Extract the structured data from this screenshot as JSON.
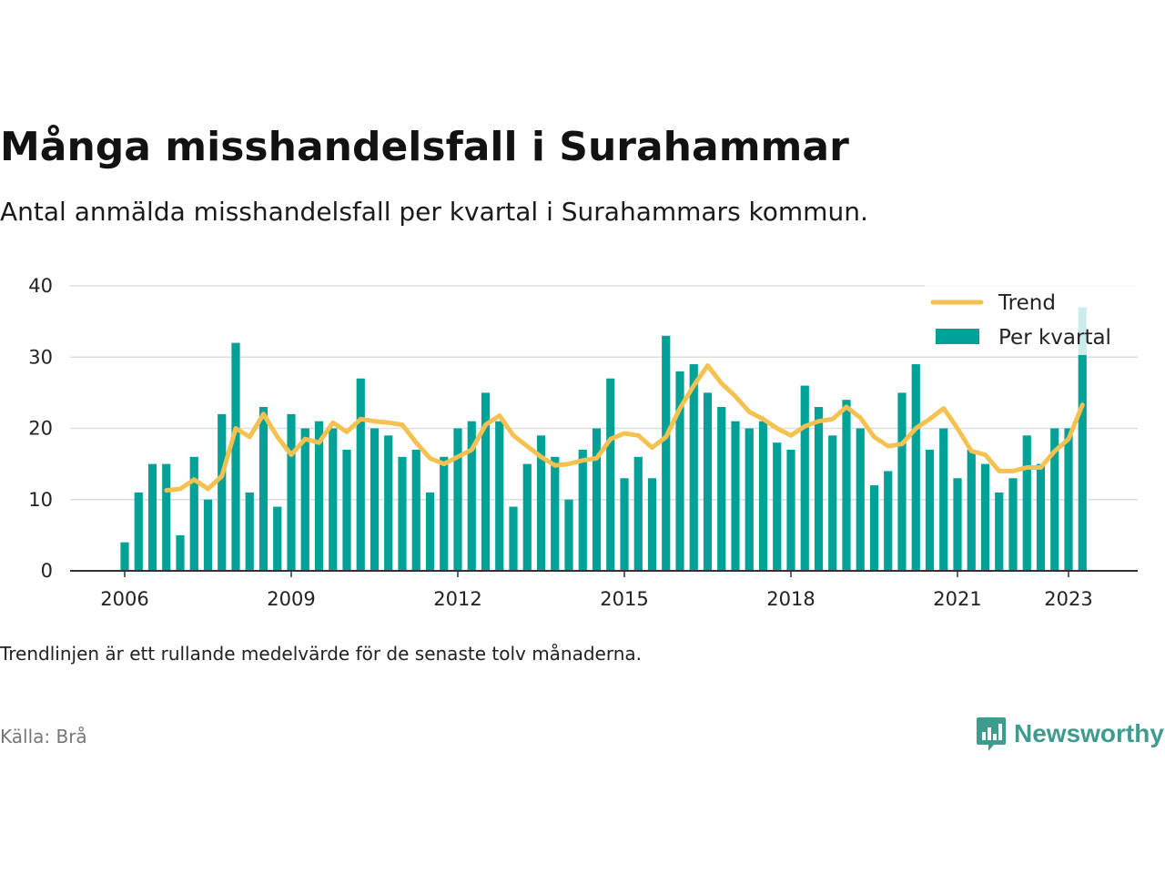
{
  "title": "Många misshandelsfall i Surahammar",
  "subtitle": "Antal anmälda misshandelsfall per kvartal i Surahammars kommun.",
  "footnote": "Trendlinjen är ett rullande medelvärde för de senaste tolv månaderna.",
  "source": "Källa: Brå",
  "brand": {
    "name": "Newsworthy",
    "icon": "newsworthy-logo-icon",
    "color": "#3f9b8e"
  },
  "colors": {
    "bars": "#00a197",
    "trend": "#f5c150",
    "grid": "#dedede",
    "axis": "#333333"
  },
  "chart_data": {
    "type": "bar",
    "title": "Många misshandelsfall i Surahammar",
    "xlabel": "",
    "ylabel": "",
    "ylim": [
      0,
      40
    ],
    "yticks": [
      0,
      10,
      20,
      30,
      40
    ],
    "xticks": [
      "2006",
      "2009",
      "2012",
      "2015",
      "2018",
      "2021",
      "2023"
    ],
    "grid": true,
    "legend_position": "top-right",
    "start": {
      "year": 2006,
      "quarter": 1
    },
    "series": [
      {
        "name": "Per kvartal",
        "type": "bar",
        "values": [
          4,
          11,
          15,
          15,
          5,
          16,
          10,
          22,
          32,
          11,
          23,
          9,
          22,
          20,
          21,
          20,
          17,
          27,
          20,
          19,
          16,
          17,
          11,
          16,
          20,
          21,
          25,
          21,
          9,
          15,
          19,
          16,
          10,
          17,
          20,
          27,
          13,
          16,
          13,
          33,
          28,
          29,
          25,
          23,
          21,
          20,
          21,
          18,
          17,
          26,
          23,
          19,
          24,
          20,
          12,
          14,
          25,
          29,
          17,
          20,
          13,
          17,
          15,
          11,
          13,
          19,
          15,
          20,
          20,
          37
        ]
      },
      {
        "name": "Trend",
        "type": "line",
        "values": [
          null,
          null,
          null,
          11.3,
          11.5,
          12.8,
          11.5,
          13.3,
          20.0,
          18.8,
          22.0,
          18.8,
          16.3,
          18.5,
          18.0,
          20.8,
          19.5,
          21.3,
          21.0,
          20.8,
          20.5,
          18.0,
          15.8,
          15.0,
          16.0,
          17.0,
          20.5,
          21.8,
          19.0,
          17.5,
          16.0,
          14.8,
          15.0,
          15.5,
          15.8,
          18.5,
          19.3,
          19.0,
          17.3,
          18.8,
          22.8,
          26.0,
          28.8,
          26.3,
          24.5,
          22.3,
          21.3,
          20.0,
          19.0,
          20.3,
          21.0,
          21.3,
          23.0,
          21.5,
          18.8,
          17.5,
          17.8,
          20.0,
          21.3,
          22.8,
          20.0,
          16.8,
          16.3,
          14.0,
          14.0,
          14.5,
          14.5,
          16.8,
          18.5,
          23.3
        ]
      }
    ]
  }
}
